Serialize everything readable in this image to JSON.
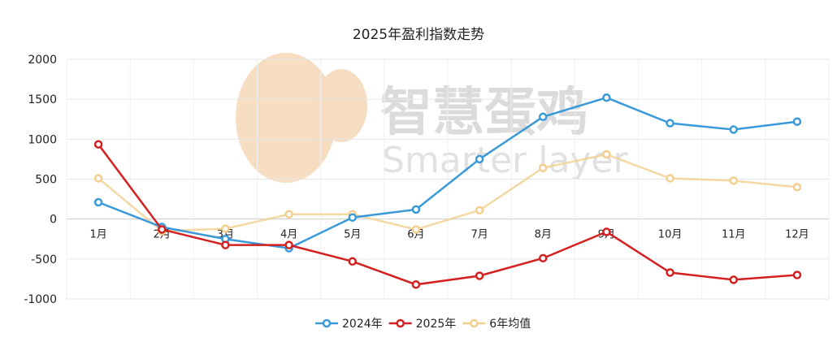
{
  "chart_data": {
    "type": "line",
    "title": "2025年盈利指数走势",
    "categories": [
      "1月",
      "2月",
      "3月",
      "4月",
      "5月",
      "6月",
      "7月",
      "8月",
      "9月",
      "10月",
      "11月",
      "12月"
    ],
    "ylim": [
      -1000,
      2000
    ],
    "yticks": [
      -1000,
      -500,
      0,
      500,
      1000,
      1500,
      2000
    ],
    "grid": true,
    "legend_position": "bottom",
    "series": [
      {
        "name": "2024年",
        "color": "#3a9ad9",
        "values": [
          210,
          -100,
          -250,
          -365,
          20,
          120,
          750,
          1280,
          1520,
          1200,
          1120,
          1220
        ]
      },
      {
        "name": "2025年",
        "color": "#d42020",
        "values": [
          935,
          -130,
          -325,
          -325,
          -530,
          -820,
          -710,
          -490,
          -160,
          -670,
          -760,
          -700
        ]
      },
      {
        "name": "6年均值",
        "color": "#f3cf8e",
        "values": [
          510,
          -150,
          -120,
          60,
          60,
          -130,
          110,
          640,
          810,
          510,
          480,
          400
        ]
      }
    ],
    "watermark": {
      "cn": "智慧蛋鸡",
      "en": "Smarter layer"
    }
  }
}
